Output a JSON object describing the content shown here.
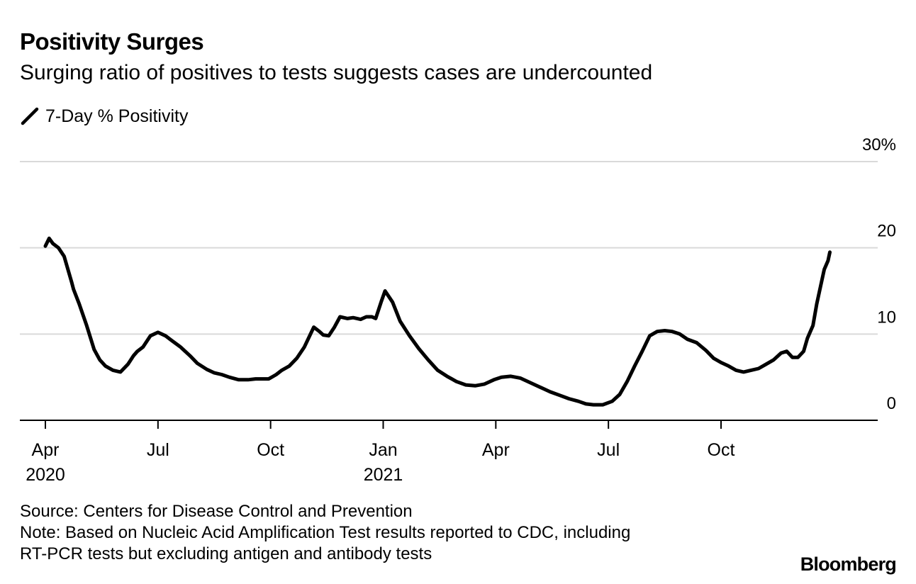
{
  "header": {
    "title": "Positivity Surges",
    "subtitle": "Surging ratio of positives to tests suggests cases are undercounted"
  },
  "legend": {
    "label": "7-Day % Positivity",
    "color": "#000000"
  },
  "footer": {
    "source": "Source: Centers for Disease Control and Prevention",
    "note_line1": "Note: Based on Nucleic Acid Amplification Test results reported to CDC, including",
    "note_line2": "RT-PCR tests but excluding antigen and antibody tests",
    "brand": "Bloomberg"
  },
  "chart_data": {
    "type": "line",
    "title": "Positivity Surges",
    "subtitle": "Surging ratio of positives to tests suggests cases are undercounted",
    "xlabel": "",
    "ylabel": "",
    "ylim": [
      0,
      30
    ],
    "yticks": [
      {
        "value": 0,
        "label": "0"
      },
      {
        "value": 10,
        "label": "10"
      },
      {
        "value": 20,
        "label": "20"
      },
      {
        "value": 30,
        "label": "30%"
      }
    ],
    "xlim": [
      -0.2,
      21.8
    ],
    "xticks": [
      {
        "value": 0,
        "label": "Apr",
        "year": "2020"
      },
      {
        "value": 3,
        "label": "Jul",
        "year": ""
      },
      {
        "value": 6,
        "label": "Oct",
        "year": ""
      },
      {
        "value": 9,
        "label": "Jan",
        "year": "2021"
      },
      {
        "value": 12,
        "label": "Apr",
        "year": ""
      },
      {
        "value": 15,
        "label": "Jul",
        "year": ""
      },
      {
        "value": 18,
        "label": "Oct",
        "year": ""
      }
    ],
    "grid": true,
    "legend_position": "top-left",
    "series": [
      {
        "name": "7-Day % Positivity",
        "color": "#000000",
        "x_unit": "months since Apr 1 2020",
        "x": [
          0,
          0.1,
          0.2,
          0.35,
          0.5,
          0.6,
          0.7,
          0.75,
          0.9,
          1.1,
          1.3,
          1.45,
          1.6,
          1.8,
          2.0,
          2.2,
          2.35,
          2.45,
          2.6,
          2.8,
          3.0,
          3.2,
          3.35,
          3.6,
          3.85,
          4.05,
          4.3,
          4.5,
          4.7,
          4.9,
          5.15,
          5.4,
          5.6,
          5.75,
          5.95,
          6.15,
          6.3,
          6.5,
          6.7,
          6.9,
          7.15,
          7.3,
          7.4,
          7.55,
          7.7,
          7.85,
          8.05,
          8.2,
          8.4,
          8.55,
          8.7,
          8.8,
          8.95,
          9.05,
          9.25,
          9.45,
          9.7,
          9.95,
          10.2,
          10.45,
          10.7,
          10.95,
          11.2,
          11.45,
          11.7,
          11.95,
          12.15,
          12.4,
          12.65,
          12.9,
          13.2,
          13.45,
          13.7,
          13.95,
          14.2,
          14.4,
          14.6,
          14.85,
          15.1,
          15.3,
          15.5,
          15.7,
          15.9,
          16.1,
          16.3,
          16.5,
          16.7,
          16.9,
          17.1,
          17.35,
          17.6,
          17.8,
          18.0,
          18.2,
          18.4,
          18.6,
          18.8,
          19.0,
          19.2,
          19.4,
          19.6,
          19.75,
          19.9,
          20.05,
          20.2,
          20.3,
          20.45,
          20.55,
          20.65,
          20.75,
          20.85,
          20.9
        ],
        "y": [
          20.2,
          21.1,
          20.5,
          20.0,
          19.0,
          17.5,
          16.0,
          15.2,
          13.5,
          11.0,
          8.2,
          7.0,
          6.3,
          5.8,
          5.6,
          6.5,
          7.5,
          8.0,
          8.5,
          9.8,
          10.2,
          9.8,
          9.3,
          8.5,
          7.5,
          6.6,
          5.9,
          5.5,
          5.3,
          5.0,
          4.7,
          4.7,
          4.8,
          4.8,
          4.8,
          5.3,
          5.8,
          6.3,
          7.2,
          8.5,
          10.8,
          10.3,
          9.9,
          9.8,
          10.8,
          12.0,
          11.8,
          11.9,
          11.7,
          12.0,
          12.0,
          11.8,
          13.8,
          15.0,
          13.7,
          11.5,
          9.8,
          8.3,
          7.0,
          5.8,
          5.1,
          4.5,
          4.1,
          4.0,
          4.2,
          4.7,
          5.0,
          5.1,
          4.9,
          4.4,
          3.8,
          3.3,
          2.9,
          2.5,
          2.2,
          1.9,
          1.8,
          1.8,
          2.2,
          3.0,
          4.5,
          6.3,
          8.0,
          9.8,
          10.3,
          10.4,
          10.3,
          10.0,
          9.4,
          9.0,
          8.1,
          7.2,
          6.7,
          6.3,
          5.8,
          5.6,
          5.8,
          6.0,
          6.5,
          7.0,
          7.8,
          8.0,
          7.3,
          7.3,
          8.0,
          9.5,
          11.0,
          13.5,
          15.5,
          17.5,
          18.5,
          19.5
        ]
      }
    ]
  }
}
